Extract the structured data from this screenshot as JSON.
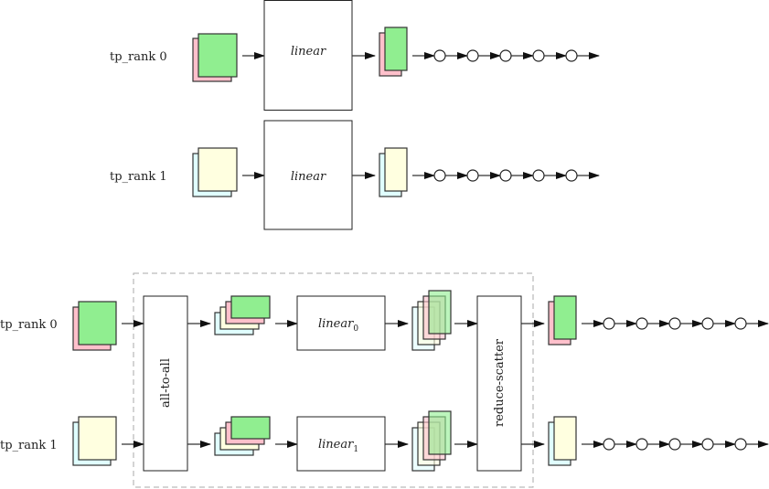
{
  "colors": {
    "green": "#90ee90",
    "pink": "#ffc0cb",
    "yellow": "#ffffe0",
    "cyan": "#e0ffff",
    "dashed": "#aaaaaa"
  },
  "top": {
    "rank0_label": "tp_rank 0",
    "rank1_label": "tp_rank 1",
    "linear0_label": "linear",
    "linear1_label": "linear"
  },
  "bottom": {
    "rank0_label": "tp_rank 0",
    "rank1_label": "tp_rank 1",
    "all_to_all_label": "all-to-all",
    "linear0_label": "linear",
    "linear0_sub": "0",
    "linear1_label": "linear",
    "linear1_sub": "1",
    "reduce_scatter_label": "reduce-scatter"
  }
}
